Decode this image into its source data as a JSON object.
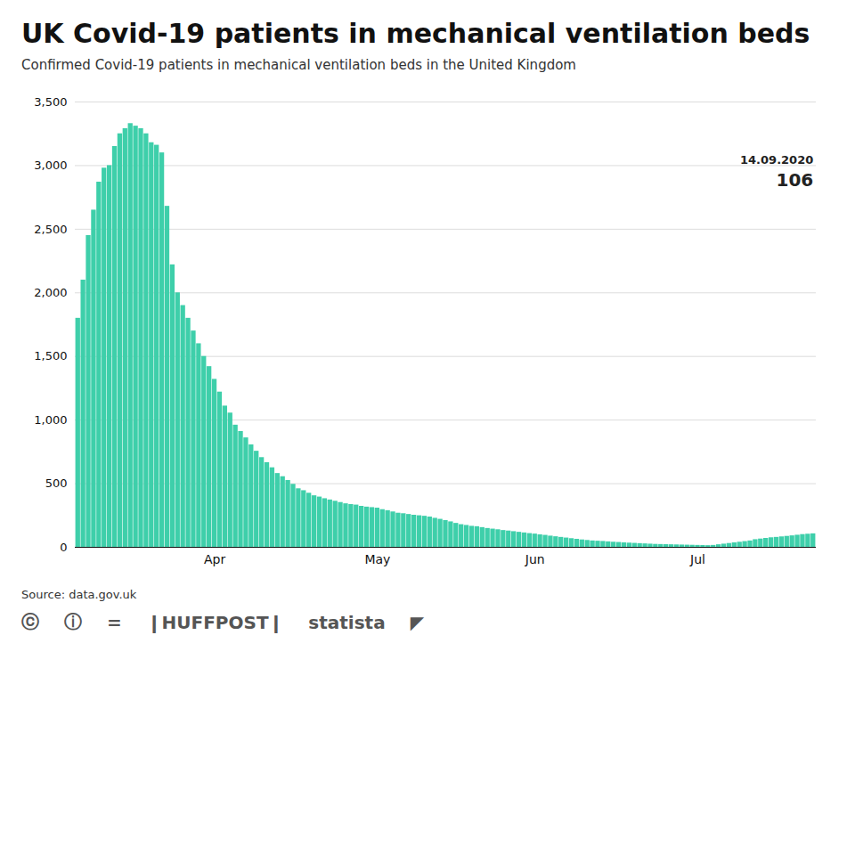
{
  "chart_data": {
    "type": "bar",
    "title": "UK Covid-19 patients in mechanical ventilation beds",
    "subtitle": "Confirmed Covid-19 patients in mechanical ventilation beds in the United Kingdom",
    "source": "Source: data.gov.uk",
    "footer": [
      "ⓒ",
      "ⓘ",
      "=",
      "❙HUFFPOST❙",
      "statista",
      "◤"
    ],
    "annotations": [
      "14.09.2020",
      "106"
    ],
    "color": "#3ecfaa",
    "grid": true,
    "ylim": [
      0,
      3500
    ],
    "yticks": [
      0,
      500,
      {
        "value": 1000,
        "label": "1,000"
      },
      {
        "value": 1500,
        "label": "1,500"
      },
      {
        "value": 2000,
        "label": "2,000"
      },
      {
        "value": 2500,
        "label": "2,500"
      },
      {
        "value": 3000,
        "label": "3,000"
      },
      {
        "value": 3500,
        "label": "3,500"
      }
    ],
    "categories": [
      null,
      null,
      null,
      null,
      null,
      null,
      null,
      null,
      null,
      null,
      null,
      null,
      null,
      null,
      null,
      null,
      null,
      null,
      null,
      null,
      null,
      null,
      null,
      null,
      null,
      null,
      "Apr",
      null,
      null,
      null,
      null,
      null,
      null,
      null,
      null,
      null,
      null,
      null,
      null,
      null,
      null,
      null,
      null,
      null,
      null,
      null,
      null,
      null,
      null,
      null,
      null,
      null,
      null,
      null,
      null,
      null,
      null,
      "May",
      null,
      null,
      null,
      null,
      null,
      null,
      null,
      null,
      null,
      null,
      null,
      null,
      null,
      null,
      null,
      null,
      null,
      null,
      null,
      null,
      null,
      null,
      null,
      null,
      null,
      null,
      null,
      null,
      null,
      "Jun",
      null,
      null,
      null,
      null,
      null,
      null,
      null,
      null,
      null,
      null,
      null,
      null,
      null,
      null,
      null,
      null,
      null,
      null,
      null,
      null,
      null,
      null,
      null,
      null,
      null,
      null,
      null,
      null,
      null,
      null,
      "Jul",
      null,
      null,
      null,
      null,
      null,
      null,
      null,
      null,
      null,
      null,
      null,
      null,
      null,
      null,
      null,
      null,
      null,
      null,
      null,
      null,
      null,
      null
    ],
    "values": [
      1800,
      2100,
      2450,
      2650,
      2870,
      2980,
      3000,
      3150,
      3250,
      3290,
      3330,
      3310,
      3290,
      3250,
      3180,
      3160,
      3100,
      2680,
      2220,
      2000,
      1900,
      1800,
      1700,
      1600,
      1500,
      1420,
      1320,
      1220,
      1110,
      1055,
      960,
      910,
      860,
      805,
      755,
      705,
      665,
      625,
      580,
      555,
      525,
      495,
      460,
      445,
      425,
      405,
      395,
      382,
      372,
      362,
      352,
      342,
      336,
      332,
      322,
      316,
      312,
      308,
      296,
      288,
      278,
      268,
      264,
      258,
      252,
      248,
      244,
      238,
      228,
      220,
      210,
      200,
      188,
      178,
      172,
      165,
      162,
      155,
      148,
      143,
      138,
      132,
      128,
      123,
      118,
      113,
      108,
      104,
      98,
      94,
      88,
      83,
      78,
      73,
      68,
      63,
      58,
      54,
      50,
      48,
      46,
      43,
      40,
      38,
      35,
      33,
      31,
      29,
      27,
      25,
      23,
      22,
      21,
      20,
      19,
      18,
      17,
      16,
      15,
      14,
      13,
      15,
      20,
      25,
      30,
      35,
      40,
      45,
      50,
      60,
      65,
      70,
      75,
      78,
      82,
      86,
      90,
      95,
      100,
      103,
      106
    ]
  }
}
